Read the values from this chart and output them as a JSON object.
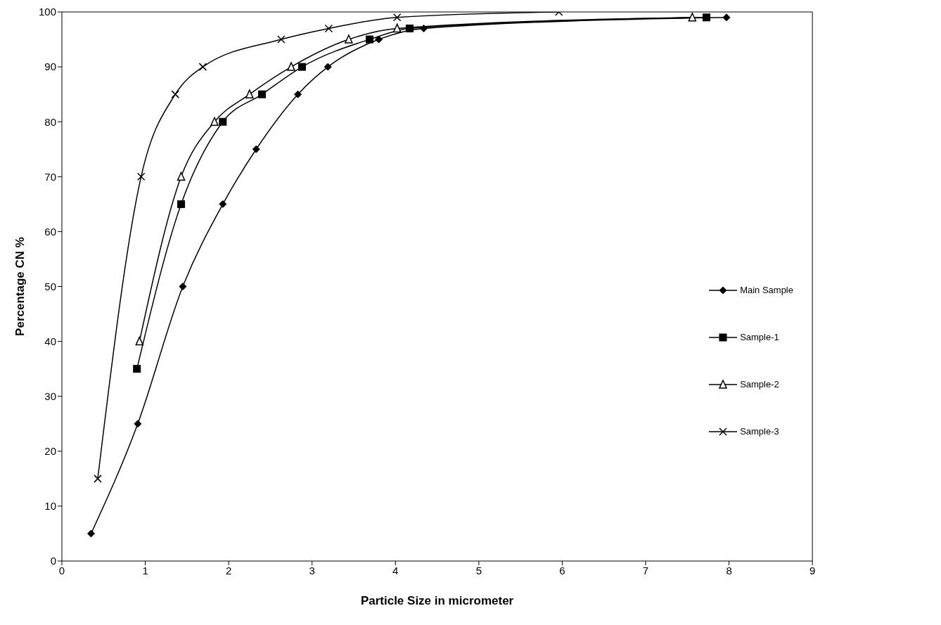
{
  "chart_data": {
    "type": "line",
    "xlabel": "Particle Size in micrometer",
    "ylabel": "Percentage CN %",
    "xlim": [
      0,
      9
    ],
    "xticks": [
      0,
      1,
      2,
      3,
      4,
      5,
      6,
      7,
      8,
      9
    ],
    "ylim": [
      0,
      100
    ],
    "yticks": [
      0,
      10,
      20,
      30,
      40,
      50,
      60,
      70,
      80,
      90,
      100
    ],
    "grid": false,
    "legend": "right",
    "series": [
      {
        "name": "Main Sample",
        "color": "#000000",
        "marker": "diamond",
        "x": [
          0.35,
          0.91,
          1.45,
          1.93,
          2.33,
          2.83,
          3.19,
          3.8,
          4.34,
          7.97
        ],
        "values": [
          5,
          25,
          50,
          65,
          75,
          85,
          90,
          95,
          97,
          99
        ]
      },
      {
        "name": "Sample-1",
        "color": "#000000",
        "marker": "square",
        "x": [
          0.9,
          1.43,
          1.93,
          2.4,
          2.88,
          3.69,
          4.17,
          7.73
        ],
        "values": [
          35,
          65,
          80,
          85,
          90,
          95,
          97,
          99
        ]
      },
      {
        "name": "Sample-2",
        "color": "#000000",
        "marker": "triangle",
        "x": [
          0.93,
          1.43,
          1.83,
          2.25,
          2.75,
          3.44,
          4.02,
          7.56
        ],
        "values": [
          40,
          70,
          80,
          85,
          90,
          95,
          97,
          99
        ]
      },
      {
        "name": "Sample-3",
        "color": "#000000",
        "marker": "cross",
        "x": [
          0.43,
          0.95,
          1.36,
          1.69,
          2.63,
          3.2,
          4.02,
          5.96
        ],
        "values": [
          15,
          70,
          85,
          90,
          95,
          97,
          99,
          100
        ]
      }
    ]
  }
}
